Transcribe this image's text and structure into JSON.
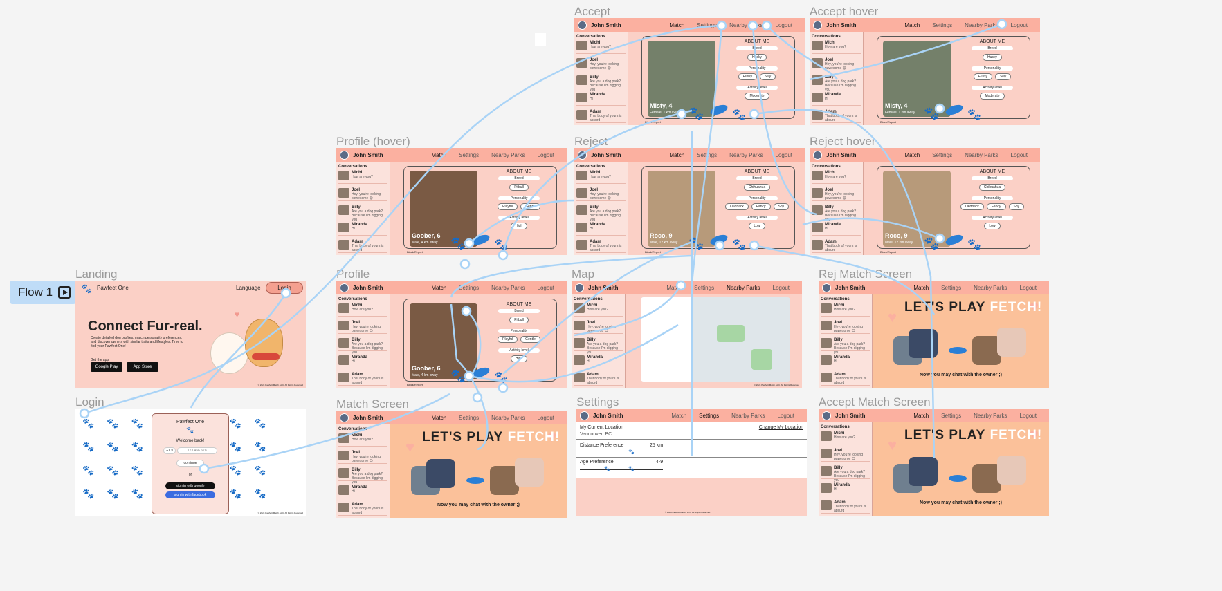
{
  "canvas": {
    "flow_label": "Flow 1"
  },
  "frames": {
    "landing": "Landing",
    "login": "Login",
    "profile_hover": "Profile (hover)",
    "profile": "Profile",
    "match_screen": "Match Screen",
    "accept": "Accept",
    "accept_hover": "Accept hover",
    "reject": "Reject",
    "reject_hover": "Reject hover",
    "map": "Map",
    "settings": "Settings",
    "rej_match": "Rej Match Screen",
    "accept_match": "Accept Match Screen"
  },
  "nav": {
    "user": "John Smith",
    "match": "Match",
    "settings": "Settings",
    "nearby": "Nearby Parks",
    "logout": "Logout"
  },
  "sidebar": {
    "title": "Conversations",
    "items": [
      {
        "name": "Michi",
        "msg": "How are you?"
      },
      {
        "name": "Joel",
        "msg": "Hey, you're looking pawesome 😉"
      },
      {
        "name": "Billy",
        "msg": "Are you a dog park? Because I'm digging you"
      },
      {
        "name": "Miranda",
        "msg": "Hi"
      },
      {
        "name": "Adam",
        "msg": "That body of yours is absurd"
      }
    ]
  },
  "landing": {
    "brand": "Pawfect One",
    "language": "Language",
    "login": "Login",
    "headline": "Connect Fur-real.",
    "sub": "Create detailed dog profiles, match personality preferences, and discover owners with similar traits and lifestyles. Time to find your Pawfect One!",
    "get_app": "Get the app",
    "google": "Google Play",
    "apple": "App Store",
    "copyright": "© 2024 Pawfect Match, LLC. All Rights Reserved"
  },
  "login": {
    "brand": "Pawfect One",
    "welcome": "Welcome back!",
    "country": "+1 ▾",
    "placeholder": "123 456 678",
    "continue": "continue",
    "or": "or",
    "google": "sign in with google",
    "facebook": "sign in with facebook",
    "copyright": "© 2024 Pawfect Match, LLC. All Rights Reserved"
  },
  "about": {
    "title": "ABOUT ME",
    "breed": "Breed",
    "personality": "Personality",
    "activity": "Activity level"
  },
  "dogs": {
    "goober": {
      "name": "Goober, 6",
      "sub": "Male, 4 km away",
      "breed": "Pitbull",
      "p1": "Playful",
      "p2": "Gentle",
      "act": "High"
    },
    "misty": {
      "name": "Misty, 4",
      "sub": "Female, 1 km away",
      "breed": "Husky",
      "p1": "Fussy",
      "p2": "Silly",
      "act": "Moderate"
    },
    "roco": {
      "name": "Roco, 9",
      "sub": "Male, 12 km away",
      "breed": "Chihuahua",
      "p1": "Laidback",
      "p2": "Fancy",
      "p3": "Shy",
      "act": "Low"
    }
  },
  "block_report": "Block/Report",
  "match": {
    "title_a": "LET'S PLAY",
    "title_b": "FETCH!",
    "chat": "Now you may chat with the owner ;)"
  },
  "settings": {
    "location_label": "My Current Location",
    "location_value": "Vancouver, BC",
    "change": "Change My Location",
    "distance_label": "Distance Preference",
    "distance_value": "25 km",
    "age_label": "Age Preference",
    "age_value": "4-9",
    "copyright": "© 2024 Pawfect Match, LLC. All Rights Reserved"
  },
  "map": {
    "copyright": "© 2024 Pawfect Match, LLC. All Rights Reserved"
  }
}
